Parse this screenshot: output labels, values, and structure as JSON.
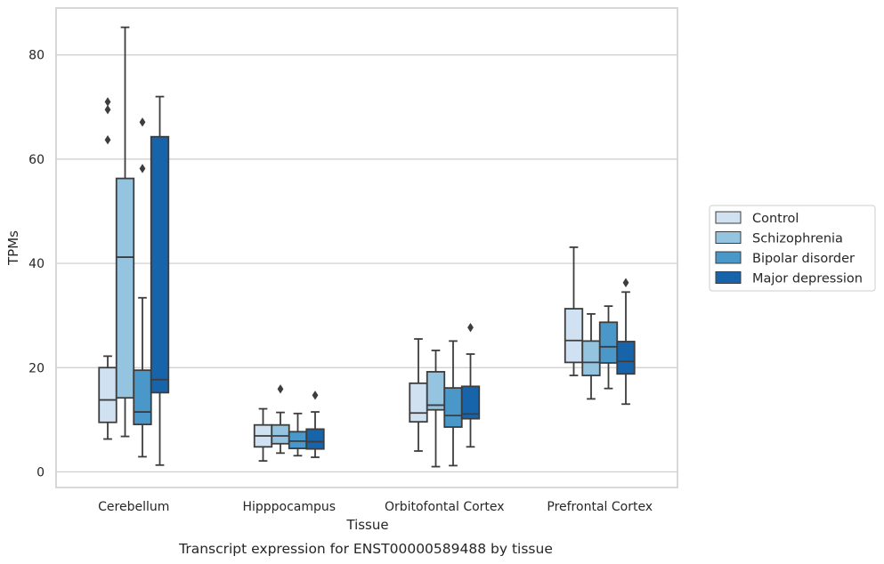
{
  "chart_data": {
    "type": "box",
    "title": "",
    "caption": "Transcript expression for ENST00000589488 by tissue",
    "xlabel": "Tissue",
    "ylabel": "TPMs",
    "ylim": [
      -3,
      89
    ],
    "yticks": [
      0,
      20,
      40,
      60,
      80
    ],
    "grid": "horizontal",
    "legend_position": "right",
    "categories": [
      "Cerebellum",
      "Hipppocampus",
      "Orbitofontal Cortex",
      "Prefrontal Cortex"
    ],
    "series": [
      {
        "name": "Control",
        "color": "#d0e1f2",
        "boxes": [
          {
            "whisker_low": 6.3,
            "q1": 9.5,
            "median": 13.8,
            "q3": 20.0,
            "whisker_high": 22.2,
            "outliers": [
              63.7,
              69.5,
              71.0
            ]
          },
          {
            "whisker_low": 2.1,
            "q1": 4.8,
            "median": 6.9,
            "q3": 9.0,
            "whisker_high": 12.1,
            "outliers": []
          },
          {
            "whisker_low": 4.0,
            "q1": 9.6,
            "median": 11.3,
            "q3": 17.0,
            "whisker_high": 25.5,
            "outliers": []
          },
          {
            "whisker_low": 18.5,
            "q1": 21.0,
            "median": 25.2,
            "q3": 31.3,
            "whisker_high": 43.1,
            "outliers": []
          }
        ]
      },
      {
        "name": "Schizophrenia",
        "color": "#94c4df",
        "boxes": [
          {
            "whisker_low": 6.8,
            "q1": 14.2,
            "median": 41.2,
            "q3": 56.3,
            "whisker_high": 85.3,
            "outliers": []
          },
          {
            "whisker_low": 3.6,
            "q1": 5.4,
            "median": 6.9,
            "q3": 9.0,
            "whisker_high": 11.4,
            "outliers": [
              15.9
            ]
          },
          {
            "whisker_low": 1.0,
            "q1": 11.9,
            "median": 12.8,
            "q3": 19.2,
            "whisker_high": 23.3,
            "outliers": []
          },
          {
            "whisker_low": 14.0,
            "q1": 18.5,
            "median": 21.0,
            "q3": 25.1,
            "whisker_high": 30.3,
            "outliers": []
          }
        ]
      },
      {
        "name": "Bipolar disorder",
        "color": "#4a98c9",
        "boxes": [
          {
            "whisker_low": 2.9,
            "q1": 9.1,
            "median": 11.5,
            "q3": 19.5,
            "whisker_high": 33.4,
            "outliers": [
              58.2,
              67.1
            ]
          },
          {
            "whisker_low": 3.1,
            "q1": 4.5,
            "median": 5.9,
            "q3": 7.7,
            "whisker_high": 11.2,
            "outliers": []
          },
          {
            "whisker_low": 1.2,
            "q1": 8.6,
            "median": 10.8,
            "q3": 16.1,
            "whisker_high": 25.1,
            "outliers": []
          },
          {
            "whisker_low": 16.0,
            "q1": 20.9,
            "median": 24.0,
            "q3": 28.7,
            "whisker_high": 31.8,
            "outliers": []
          }
        ]
      },
      {
        "name": "Major depression",
        "color": "#1764ab",
        "boxes": [
          {
            "whisker_low": 1.3,
            "q1": 15.2,
            "median": 17.7,
            "q3": 64.3,
            "whisker_high": 72.0,
            "outliers": []
          },
          {
            "whisker_low": 2.8,
            "q1": 4.4,
            "median": 5.8,
            "q3": 8.2,
            "whisker_high": 11.5,
            "outliers": [
              14.7
            ]
          },
          {
            "whisker_low": 4.8,
            "q1": 10.2,
            "median": 11.1,
            "q3": 16.4,
            "whisker_high": 22.6,
            "outliers": [
              27.7
            ]
          },
          {
            "whisker_low": 13.0,
            "q1": 18.8,
            "median": 21.2,
            "q3": 25.0,
            "whisker_high": 34.5,
            "outliers": [
              36.3
            ]
          }
        ]
      }
    ]
  }
}
